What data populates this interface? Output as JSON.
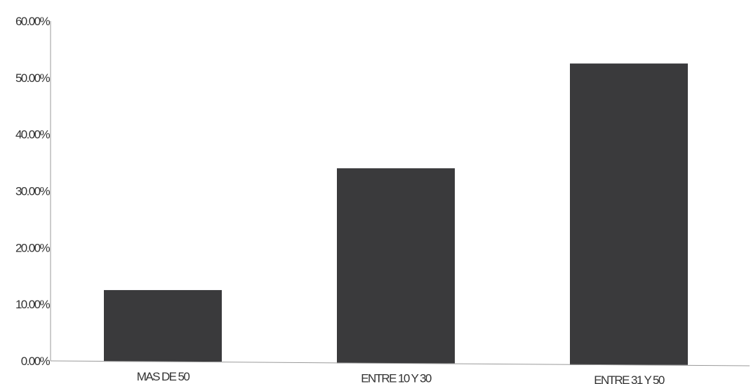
{
  "chart_data": {
    "type": "bar",
    "categories": [
      "MAS DE 50",
      "ENTRE 10 Y 30",
      "ENTRE 31 Y 50"
    ],
    "values": [
      12.5,
      34.0,
      52.5
    ],
    "ylim": [
      0,
      60
    ],
    "yticks": [
      "0.00%",
      "10.00%",
      "20.00%",
      "30.00%",
      "40.00%",
      "50.00%",
      "60.00%"
    ],
    "grid": false,
    "legend": "none",
    "colors": {
      "bar": "#3a3a3c",
      "axis": "#9a9a9a",
      "text": "#333333"
    }
  }
}
